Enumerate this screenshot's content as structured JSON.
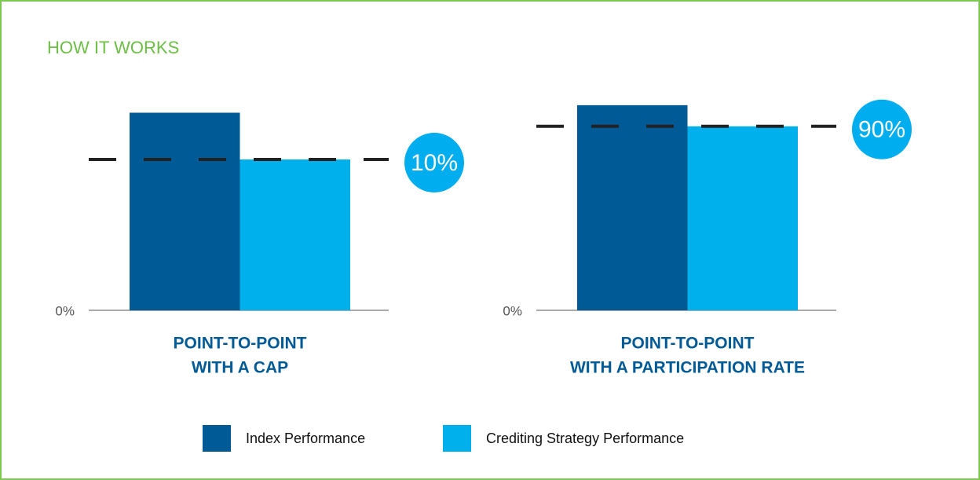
{
  "chart_data": {
    "title": "HOW IT WORKS",
    "legend": [
      {
        "name": "Index Performance",
        "color": "#005a96"
      },
      {
        "name": "Crediting Strategy Performance",
        "color": "#00b0ec"
      }
    ],
    "charts": [
      {
        "type": "bar",
        "x_label": [
          "POINT-TO-POINT",
          "WITH A CAP"
        ],
        "values": [
          13.1,
          10
        ],
        "reference_line": 10,
        "badge": "10%",
        "ylim": [
          0,
          15
        ],
        "yticks": [
          {
            "value": 0,
            "label": "0%"
          }
        ]
      },
      {
        "type": "bar",
        "x_label": [
          "POINT-TO-POINT",
          "WITH A PARTICIPATION RATE"
        ],
        "values": [
          13.6,
          12.2
        ],
        "reference_line": 12.2,
        "badge": "90%",
        "ylim": [
          0,
          15
        ],
        "yticks": [
          {
            "value": 0,
            "label": "0%"
          }
        ]
      }
    ]
  }
}
